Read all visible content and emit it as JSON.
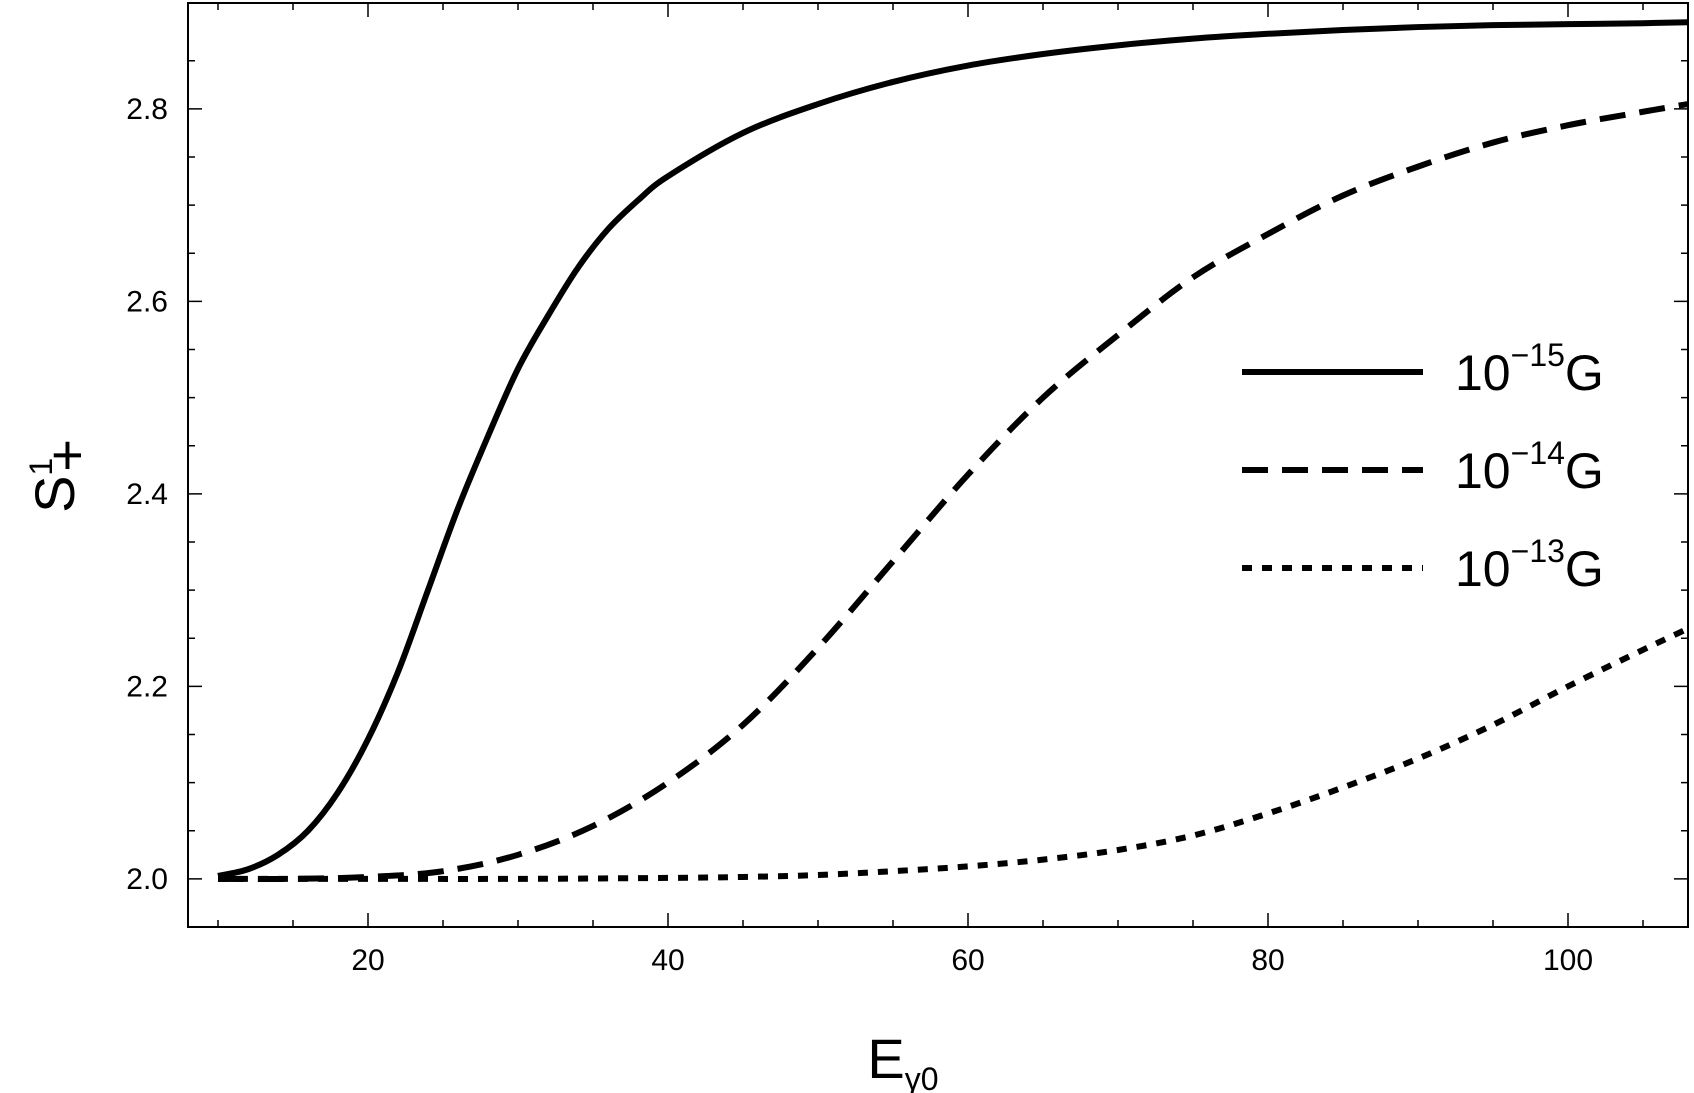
{
  "chart_data": {
    "type": "line",
    "title": "",
    "xlabel": {
      "main": "E",
      "sub": "γ0"
    },
    "ylabel": {
      "main": "S",
      "sup": "1",
      "sub": "+"
    },
    "xlim": [
      8,
      108
    ],
    "ylim": [
      1.95,
      2.91
    ],
    "x_ticks": [
      20,
      40,
      60,
      80,
      100
    ],
    "x_tick_labels": [
      "20",
      "40",
      "60",
      "80",
      "100"
    ],
    "y_ticks": [
      2.0,
      2.2,
      2.4,
      2.6,
      2.8
    ],
    "y_tick_labels": [
      "2.0",
      "2.2",
      "2.4",
      "2.6",
      "2.8"
    ],
    "grid": false,
    "legend_position": "right",
    "series": [
      {
        "name": {
          "base": "10",
          "exp": "−15",
          "unit": "G"
        },
        "style": "solid",
        "x": [
          10,
          12,
          14,
          16,
          18,
          20,
          22,
          24,
          26,
          28,
          30,
          32,
          34,
          36,
          38,
          40,
          45,
          50,
          55,
          60,
          65,
          70,
          75,
          80,
          85,
          90,
          95,
          100,
          105,
          108
        ],
        "y": [
          2.003,
          2.01,
          2.025,
          2.05,
          2.09,
          2.145,
          2.215,
          2.3,
          2.385,
          2.46,
          2.53,
          2.585,
          2.635,
          2.675,
          2.705,
          2.73,
          2.775,
          2.805,
          2.828,
          2.845,
          2.857,
          2.866,
          2.873,
          2.878,
          2.882,
          2.885,
          2.887,
          2.888,
          2.889,
          2.89
        ]
      },
      {
        "name": {
          "base": "10",
          "exp": "−14",
          "unit": "G"
        },
        "style": "dashed",
        "x": [
          10,
          15,
          20,
          25,
          30,
          35,
          40,
          45,
          50,
          55,
          60,
          65,
          70,
          75,
          80,
          85,
          90,
          95,
          100,
          105,
          108
        ],
        "y": [
          2.0,
          2.0,
          2.002,
          2.008,
          2.025,
          2.055,
          2.1,
          2.16,
          2.24,
          2.33,
          2.42,
          2.5,
          2.565,
          2.625,
          2.67,
          2.71,
          2.74,
          2.765,
          2.783,
          2.797,
          2.805
        ]
      },
      {
        "name": {
          "base": "10",
          "exp": "−13",
          "unit": "G"
        },
        "style": "dotted",
        "x": [
          10,
          20,
          30,
          40,
          45,
          50,
          55,
          60,
          65,
          70,
          75,
          80,
          85,
          90,
          95,
          100,
          105,
          108
        ],
        "y": [
          2.0,
          2.0,
          2.0,
          2.001,
          2.002,
          2.004,
          2.008,
          2.013,
          2.02,
          2.03,
          2.045,
          2.068,
          2.095,
          2.125,
          2.16,
          2.2,
          2.238,
          2.26
        ]
      }
    ]
  }
}
